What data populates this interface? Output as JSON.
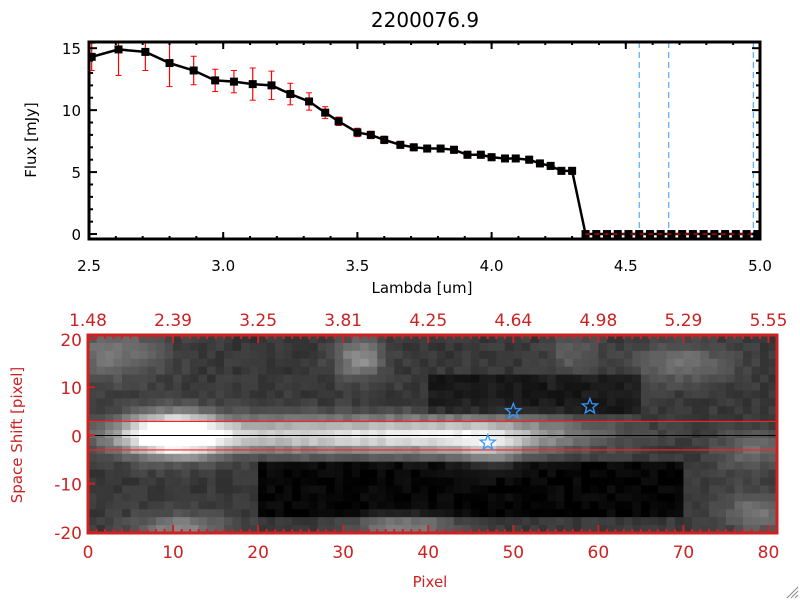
{
  "colors": {
    "accent_red": "#cc2222",
    "marker": "#000000",
    "errorbar": "#ff0000",
    "dashed_blue": "#3399ff"
  },
  "chart_data": [
    {
      "type": "line",
      "title": "2200076.9",
      "xlabel": "Lambda [um]",
      "ylabel": "Flux [mJy]",
      "xlim": [
        2.5,
        5.0
      ],
      "ylim": [
        -0.4,
        15.5
      ],
      "xticks": [
        "2.5",
        "3.0",
        "3.5",
        "4.0",
        "4.5",
        "5.0"
      ],
      "xtick_values": [
        2.5,
        3.0,
        3.5,
        4.0,
        4.5,
        5.0
      ],
      "yticks": [
        "0",
        "5",
        "10",
        "15"
      ],
      "ytick_values": [
        0,
        5,
        10,
        15
      ],
      "series": [
        {
          "name": "flux",
          "x": [
            2.51,
            2.61,
            2.71,
            2.8,
            2.89,
            2.97,
            3.04,
            3.11,
            3.18,
            3.25,
            3.32,
            3.38,
            3.43,
            3.5,
            3.55,
            3.6,
            3.66,
            3.71,
            3.76,
            3.81,
            3.86,
            3.91,
            3.96,
            4.0,
            4.05,
            4.09,
            4.14,
            4.18,
            4.22,
            4.26,
            4.3,
            4.35,
            4.39,
            4.43,
            4.47,
            4.51,
            4.55,
            4.59,
            4.63,
            4.67,
            4.71,
            4.75,
            4.79,
            4.83,
            4.87,
            4.91,
            4.95,
            4.99
          ],
          "y": [
            14.3,
            14.9,
            14.7,
            13.8,
            13.2,
            12.4,
            12.3,
            12.1,
            12.0,
            11.3,
            10.7,
            9.8,
            9.1,
            8.2,
            8.0,
            7.6,
            7.2,
            7.0,
            6.9,
            6.9,
            6.8,
            6.4,
            6.4,
            6.2,
            6.1,
            6.1,
            6.0,
            5.7,
            5.5,
            5.1,
            5.1,
            0,
            0,
            0,
            0,
            0,
            0,
            0,
            0,
            0,
            0,
            0,
            0,
            0,
            0,
            0,
            0,
            0
          ],
          "yerr": [
            1.1,
            2.1,
            1.5,
            1.9,
            1.15,
            0.9,
            0.9,
            1.3,
            1.15,
            0.87,
            0.7,
            0.48,
            0.34,
            0.34,
            0.3,
            0.3,
            0.28,
            0.28,
            0.28,
            0.28,
            0.28,
            0.28,
            0.28,
            0.28,
            0.28,
            0.28,
            0.28,
            0.28,
            0.28,
            0.28,
            0.28,
            0,
            0,
            0,
            0,
            0,
            0,
            0,
            0,
            0,
            0,
            0,
            0,
            0,
            0,
            0,
            0,
            0
          ]
        }
      ],
      "vlines_dashed": [
        4.55,
        4.66,
        4.975
      ],
      "hline_dashed": {
        "y": 0,
        "from": 4.35,
        "to": 5.0
      }
    },
    {
      "type": "heatmap",
      "xlabel": "Pixel",
      "ylabel": "Space Shift [pixel]",
      "xlim": [
        0,
        81
      ],
      "ylim": [
        -20.2,
        20.8
      ],
      "xticks": [
        "0",
        "10",
        "20",
        "30",
        "40",
        "50",
        "60",
        "70",
        "80"
      ],
      "xtick_values": [
        0,
        10,
        20,
        30,
        40,
        50,
        60,
        70,
        80
      ],
      "yticks": [
        "20",
        "10",
        "0",
        "-10",
        "-20"
      ],
      "ytick_values": [
        20,
        10,
        0,
        -10,
        -20
      ],
      "top_xticks": [
        "1.48",
        "2.39",
        "3.25",
        "3.81",
        "4.25",
        "4.64",
        "4.98",
        "5.29",
        "5.55"
      ],
      "extraction_lines": [
        2.9,
        -3.0
      ],
      "center_line": 0,
      "stars": [
        {
          "x": 50,
          "y": 5
        },
        {
          "x": 59,
          "y": 6
        },
        {
          "x": 47,
          "y": -1.5
        }
      ]
    }
  ]
}
